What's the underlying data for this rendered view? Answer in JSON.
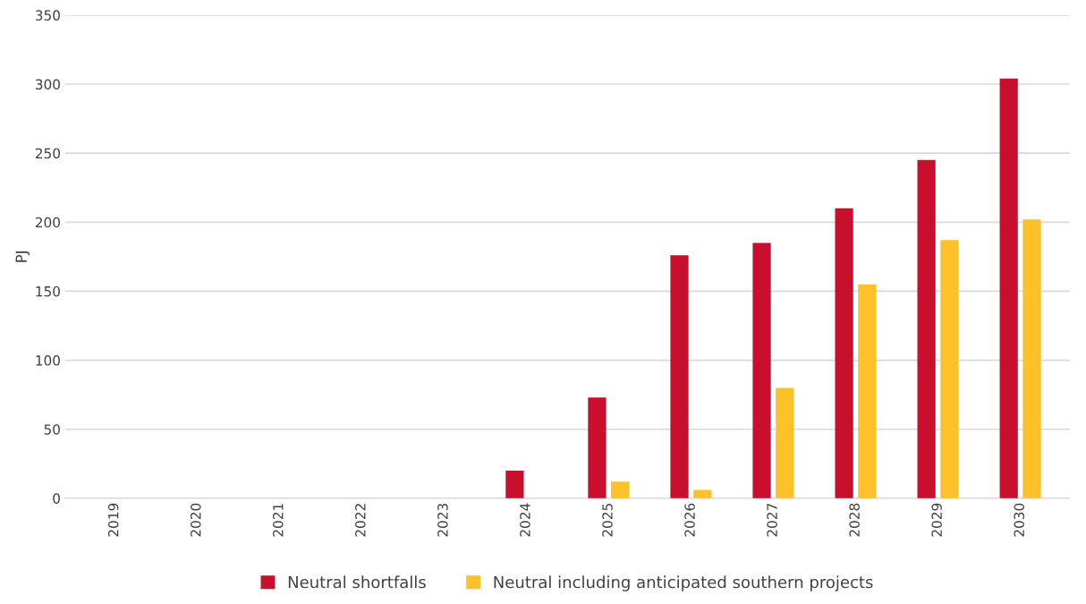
{
  "chart_data": {
    "type": "bar",
    "ylabel": "PJ",
    "categories": [
      "2019",
      "2020",
      "2021",
      "2022",
      "2023",
      "2024",
      "2025",
      "2026",
      "2027",
      "2028",
      "2029",
      "2030"
    ],
    "series": [
      {
        "name": "Neutral shortfalls",
        "color": "#c8102e",
        "values": [
          0,
          0,
          0,
          0,
          0,
          20,
          73,
          176,
          185,
          210,
          245,
          304
        ]
      },
      {
        "name": "Neutral including anticipated southern projects",
        "color": "#fdc12a",
        "values": [
          0,
          0,
          0,
          0,
          0,
          0,
          12,
          6,
          80,
          155,
          187,
          202
        ]
      }
    ],
    "ylim": [
      0,
      350
    ],
    "yticks": [
      0,
      50,
      100,
      150,
      200,
      250,
      300,
      350
    ],
    "grid": "y",
    "legend": "bottom"
  }
}
